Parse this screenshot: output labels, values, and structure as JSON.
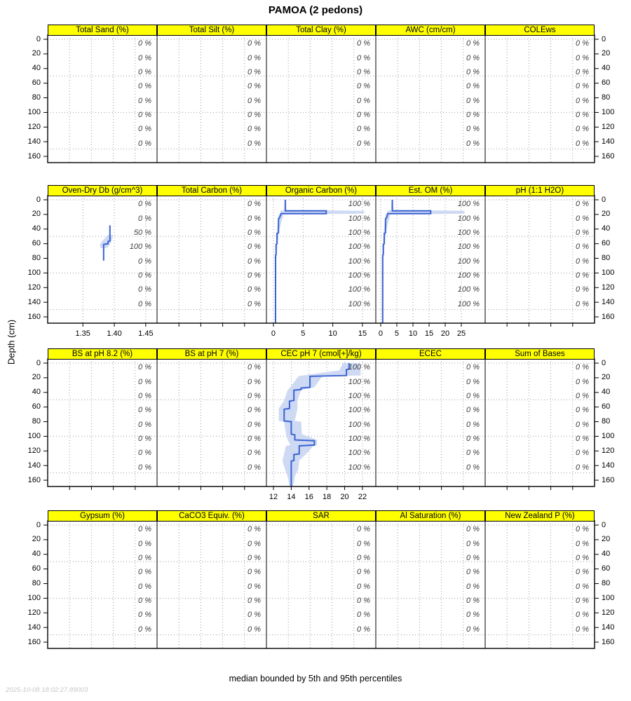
{
  "title": "PAMOA (2 pedons)",
  "y_axis_title": "Depth (cm)",
  "caption": "median bounded by 5th and 95th percentiles",
  "timestamp": "2025-10-08 18:02:27.89003",
  "colors": {
    "header_bg": "#ffff00",
    "median_line": "#3b62d2",
    "band": "#c5d3f1",
    "grid": "#999999",
    "slice_label": "#404040",
    "timestamp": "#c8c8c8"
  },
  "depth_axis": {
    "tick_values": [
      0,
      20,
      40,
      60,
      80,
      100,
      120,
      140,
      160
    ],
    "tick_labels": [
      "0",
      "20",
      "40",
      "60",
      "80",
      "100",
      "120",
      "140",
      "160"
    ],
    "grid_depths": [
      0,
      50,
      100,
      150
    ],
    "slice_label_depths": [
      6,
      25.5,
      45,
      64.5,
      84,
      103.5,
      123,
      142.5
    ],
    "max_depth": 168
  },
  "chart_data": {
    "type": "line",
    "orientation": "depth-profile",
    "note": "median profile with 5th-95th percentile envelope; right-edge italic labels are contributing fractions per depth slice",
    "rows": [
      {
        "panels": [
          {
            "title": "Total Sand (%)",
            "slice_labels": [
              "0 %",
              "0 %",
              "0 %",
              "0 %",
              "0 %",
              "0 %",
              "0 %",
              "0 %"
            ],
            "xaxis": null,
            "median": null,
            "band": null
          },
          {
            "title": "Total Silt (%)",
            "slice_labels": [
              "0 %",
              "0 %",
              "0 %",
              "0 %",
              "0 %",
              "0 %",
              "0 %",
              "0 %"
            ],
            "xaxis": null,
            "median": null,
            "band": null
          },
          {
            "title": "Total Clay (%)",
            "slice_labels": [
              "0 %",
              "0 %",
              "0 %",
              "0 %",
              "0 %",
              "0 %",
              "0 %",
              "0 %"
            ],
            "xaxis": null,
            "median": null,
            "band": null
          },
          {
            "title": "AWC (cm/cm)",
            "slice_labels": [
              "0 %",
              "0 %",
              "0 %",
              "0 %",
              "0 %",
              "0 %",
              "0 %",
              "0 %"
            ],
            "xaxis": null,
            "median": null,
            "band": null
          },
          {
            "title": "COLEws",
            "slice_labels": [
              "0 %",
              "0 %",
              "0 %",
              "0 %",
              "0 %",
              "0 %",
              "0 %",
              "0 %"
            ],
            "xaxis": null,
            "median": null,
            "band": null
          }
        ]
      },
      {
        "panels": [
          {
            "title": "Oven-Dry Db (g/cm^3)",
            "slice_labels": [
              "0 %",
              "0 %",
              "50 %",
              "100 %",
              "0 %",
              "0 %",
              "0 %",
              "0 %"
            ],
            "xaxis": {
              "xlim": [
                1.294,
                1.468
              ],
              "tick_values": [
                1.35,
                1.4,
                1.45
              ],
              "tick_labels": [
                "1.35",
                "1.40",
                "1.45"
              ]
            },
            "median": [
              [
                1.393,
                35
              ],
              [
                1.393,
                56
              ],
              [
                1.39,
                57
              ],
              [
                1.39,
                60
              ],
              [
                1.383,
                61
              ],
              [
                1.383,
                83
              ]
            ],
            "band": [
              [
                1.39,
                1.398,
                48
              ],
              [
                1.381,
                1.396,
                56
              ],
              [
                1.377,
                1.393,
                61
              ],
              [
                1.378,
                1.388,
                66
              ]
            ]
          },
          {
            "title": "Total Carbon (%)",
            "slice_labels": [
              "0 %",
              "0 %",
              "0 %",
              "0 %",
              "0 %",
              "0 %",
              "0 %",
              "0 %"
            ],
            "xaxis": null,
            "median": null,
            "band": null
          },
          {
            "title": "Organic Carbon (%)",
            "slice_labels": [
              "100 %",
              "100 %",
              "100 %",
              "100 %",
              "100 %",
              "100 %",
              "100 %",
              "100 %"
            ],
            "xaxis": {
              "xlim": [
                -1.18,
                17.25
              ],
              "tick_values": [
                0,
                5,
                10,
                15
              ],
              "tick_labels": [
                "0",
                "5",
                "10",
                "15"
              ]
            },
            "median": [
              [
                2.0,
                0
              ],
              [
                2.0,
                15
              ],
              [
                8.9,
                15
              ],
              [
                8.9,
                19
              ],
              [
                1.3,
                19
              ],
              [
                1.0,
                25
              ],
              [
                0.85,
                26
              ],
              [
                0.85,
                45
              ],
              [
                0.6,
                46
              ],
              [
                0.6,
                60
              ],
              [
                0.45,
                61
              ],
              [
                0.45,
                75
              ],
              [
                0.35,
                76
              ],
              [
                0.35,
                168
              ]
            ],
            "band": [
              [
                1.9,
                2.15,
                0
              ],
              [
                1.8,
                2.2,
                14
              ],
              [
                1.2,
                15.3,
                15
              ],
              [
                1.1,
                15.3,
                19
              ],
              [
                0.9,
                1.7,
                20
              ],
              [
                0.6,
                1.0,
                40
              ],
              [
                0.4,
                0.7,
                60
              ],
              [
                0.3,
                0.5,
                80
              ],
              [
                0.28,
                0.45,
                168
              ]
            ]
          },
          {
            "title": "Est. OM (%)",
            "slice_labels": [
              "100 %",
              "100 %",
              "100 %",
              "100 %",
              "100 %",
              "100 %",
              "100 %",
              "100 %"
            ],
            "xaxis": {
              "xlim": [
                -1.52,
                32.39
              ],
              "tick_values": [
                0,
                5,
                10,
                15,
                20,
                25
              ],
              "tick_labels": [
                "0",
                "5",
                "10",
                "15",
                "20",
                "25"
              ]
            },
            "median": [
              [
                3.6,
                0
              ],
              [
                3.6,
                15
              ],
              [
                15.5,
                15
              ],
              [
                15.5,
                19
              ],
              [
                2.2,
                19
              ],
              [
                1.8,
                25
              ],
              [
                1.5,
                26
              ],
              [
                1.5,
                45
              ],
              [
                1.1,
                46
              ],
              [
                1.1,
                60
              ],
              [
                0.8,
                61
              ],
              [
                0.8,
                75
              ],
              [
                0.6,
                76
              ],
              [
                0.6,
                168
              ]
            ],
            "band": [
              [
                3.4,
                3.8,
                0
              ],
              [
                3.2,
                3.9,
                14
              ],
              [
                2.1,
                26.0,
                15
              ],
              [
                1.9,
                26.0,
                19
              ],
              [
                1.5,
                3.0,
                20
              ],
              [
                1.0,
                1.8,
                40
              ],
              [
                0.7,
                1.2,
                60
              ],
              [
                0.5,
                0.9,
                80
              ],
              [
                0.5,
                0.8,
                168
              ]
            ]
          },
          {
            "title": "pH (1:1 H2O)",
            "slice_labels": [
              "0 %",
              "0 %",
              "0 %",
              "0 %",
              "0 %",
              "0 %",
              "0 %",
              "0 %"
            ],
            "xaxis": null,
            "median": null,
            "band": null
          }
        ]
      },
      {
        "panels": [
          {
            "title": "BS at pH 8.2 (%)",
            "slice_labels": [
              "0 %",
              "0 %",
              "0 %",
              "0 %",
              "0 %",
              "0 %",
              "0 %",
              "0 %"
            ],
            "xaxis": null,
            "median": null,
            "band": null
          },
          {
            "title": "BS at pH 7 (%)",
            "slice_labels": [
              "0 %",
              "0 %",
              "0 %",
              "0 %",
              "0 %",
              "0 %",
              "0 %",
              "0 %"
            ],
            "xaxis": null,
            "median": null,
            "band": null
          },
          {
            "title": "CEC pH 7 (cmol[+]/kg)",
            "slice_labels": [
              "100 %",
              "100 %",
              "100 %",
              "100 %",
              "100 %",
              "100 %",
              "100 %",
              "100 %"
            ],
            "xaxis": {
              "xlim": [
                11.21,
                23.5
              ],
              "tick_values": [
                12,
                14,
                16,
                18,
                20,
                22
              ],
              "tick_labels": [
                "12",
                "14",
                "16",
                "18",
                "20",
                "22"
              ]
            },
            "median": [
              [
                20.5,
                0
              ],
              [
                20.5,
                8
              ],
              [
                20.2,
                9
              ],
              [
                20.2,
                17
              ],
              [
                16.1,
                18
              ],
              [
                16.1,
                33
              ],
              [
                15.1,
                34
              ],
              [
                15.1,
                36
              ],
              [
                14.3,
                37
              ],
              [
                14.3,
                51
              ],
              [
                13.8,
                52
              ],
              [
                13.8,
                62
              ],
              [
                13.2,
                63
              ],
              [
                13.2,
                79
              ],
              [
                14.0,
                80
              ],
              [
                14.0,
                97
              ],
              [
                14.4,
                98
              ],
              [
                14.4,
                105
              ],
              [
                16.6,
                106
              ],
              [
                16.6,
                112
              ],
              [
                14.9,
                113
              ],
              [
                14.9,
                124
              ],
              [
                14.3,
                125
              ],
              [
                14.3,
                133
              ],
              [
                14.0,
                134
              ],
              [
                14.0,
                168
              ]
            ],
            "band": [
              [
                19.8,
                21.7,
                0
              ],
              [
                19.4,
                21.8,
                10
              ],
              [
                15.2,
                21.8,
                17
              ],
              [
                14.8,
                17.5,
                18
              ],
              [
                13.9,
                16.6,
                33
              ],
              [
                13.6,
                15.1,
                37
              ],
              [
                13.2,
                14.7,
                51
              ],
              [
                12.6,
                14.7,
                62
              ],
              [
                12.6,
                14.4,
                79
              ],
              [
                13.2,
                15.1,
                80
              ],
              [
                13.4,
                15.2,
                97
              ],
              [
                13.6,
                16.9,
                105
              ],
              [
                13.9,
                16.9,
                112
              ],
              [
                13.4,
                16.5,
                113
              ],
              [
                13.2,
                15.7,
                124
              ],
              [
                13.0,
                14.9,
                133
              ],
              [
                13.3,
                14.8,
                145
              ],
              [
                13.6,
                14.4,
                155
              ],
              [
                13.8,
                14.2,
                168
              ]
            ]
          },
          {
            "title": "ECEC",
            "slice_labels": [
              "0 %",
              "0 %",
              "0 %",
              "0 %",
              "0 %",
              "0 %",
              "0 %",
              "0 %"
            ],
            "xaxis": null,
            "median": null,
            "band": null
          },
          {
            "title": "Sum of Bases",
            "slice_labels": [
              "0 %",
              "0 %",
              "0 %",
              "0 %",
              "0 %",
              "0 %",
              "0 %",
              "0 %"
            ],
            "xaxis": null,
            "median": null,
            "band": null
          }
        ]
      },
      {
        "panels": [
          {
            "title": "Gypsum (%)",
            "slice_labels": [
              "0 %",
              "0 %",
              "0 %",
              "0 %",
              "0 %",
              "0 %",
              "0 %",
              "0 %"
            ],
            "xaxis": null,
            "median": null,
            "band": null
          },
          {
            "title": "CaCO3 Equiv. (%)",
            "slice_labels": [
              "0 %",
              "0 %",
              "0 %",
              "0 %",
              "0 %",
              "0 %",
              "0 %",
              "0 %"
            ],
            "xaxis": null,
            "median": null,
            "band": null
          },
          {
            "title": "SAR",
            "slice_labels": [
              "0 %",
              "0 %",
              "0 %",
              "0 %",
              "0 %",
              "0 %",
              "0 %",
              "0 %"
            ],
            "xaxis": null,
            "median": null,
            "band": null
          },
          {
            "title": "Al Saturation (%)",
            "slice_labels": [
              "0 %",
              "0 %",
              "0 %",
              "0 %",
              "0 %",
              "0 %",
              "0 %",
              "0 %"
            ],
            "xaxis": null,
            "median": null,
            "band": null
          },
          {
            "title": "New Zealand P (%)",
            "slice_labels": [
              "0 %",
              "0 %",
              "0 %",
              "0 %",
              "0 %",
              "0 %",
              "0 %",
              "0 %"
            ],
            "xaxis": null,
            "median": null,
            "band": null
          }
        ]
      }
    ]
  }
}
